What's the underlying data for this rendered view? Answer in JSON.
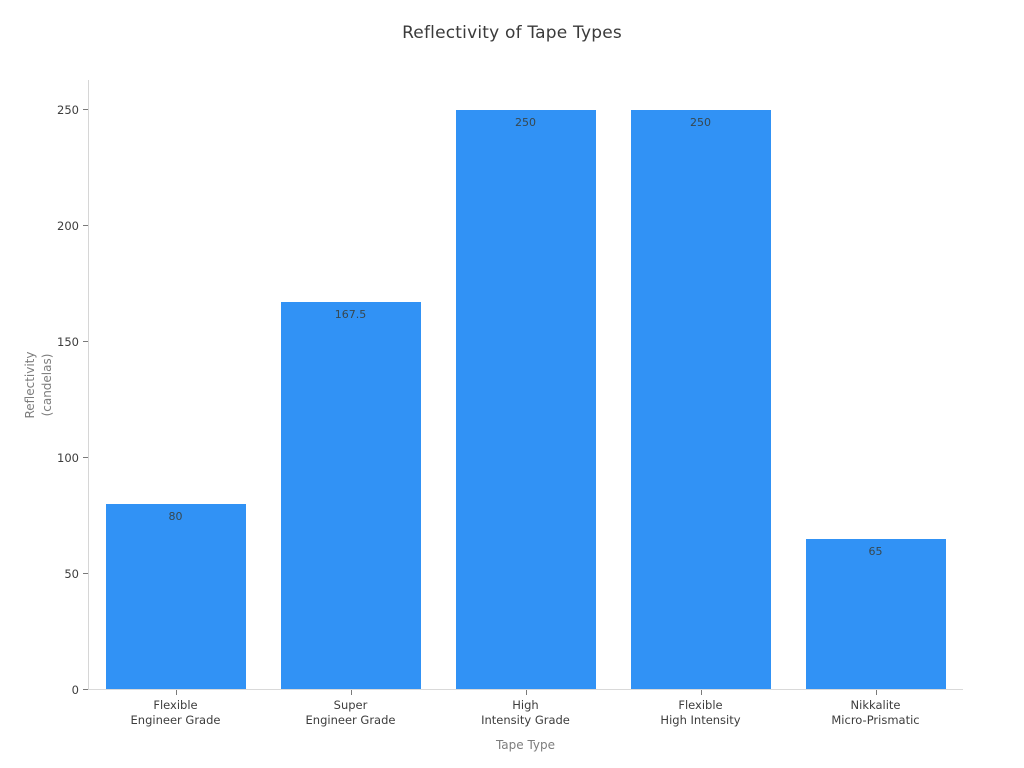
{
  "chart_data": {
    "type": "bar",
    "title": "Reflectivity of Tape Types",
    "xlabel": "Tape Type",
    "ylabel_lines": [
      "Reflectivity",
      "(candelas)"
    ],
    "categories": [
      [
        "Flexible",
        "Engineer Grade"
      ],
      [
        "Super",
        "Engineer Grade"
      ],
      [
        "High",
        "Intensity Grade"
      ],
      [
        "Flexible",
        "High Intensity"
      ],
      [
        "Nikkalite",
        "Micro-Prismatic"
      ]
    ],
    "values": [
      80,
      167.5,
      250,
      250,
      65
    ],
    "value_labels": [
      "80",
      "167.5",
      "250",
      "250",
      "65"
    ],
    "yticks": [
      0,
      50,
      100,
      150,
      200,
      250
    ],
    "ylim": [
      0,
      263
    ],
    "grid": false,
    "legend": null,
    "colors": {
      "bar": "#3192F5",
      "bar_value_text": "#37474f",
      "tick_text": "#3d3d3d",
      "axis_title_text": "#7d7d7d",
      "spine": "#d6d6d6"
    },
    "layout": {
      "bar_width_fraction": 0.8
    }
  }
}
